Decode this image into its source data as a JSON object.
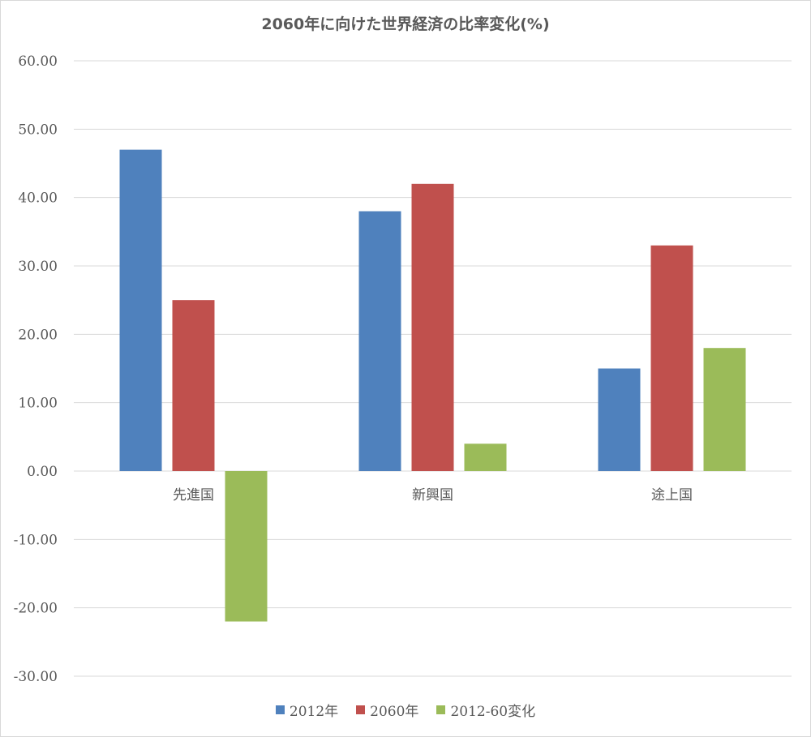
{
  "chart_data": {
    "type": "bar",
    "title": "2060年に向けた世界経済の比率変化(%)",
    "categories": [
      "先進国",
      "新興国",
      "途上国"
    ],
    "series": [
      {
        "name": "2012年",
        "values": [
          47,
          38,
          15
        ],
        "color": "#4f81bd"
      },
      {
        "name": "2060年",
        "values": [
          25,
          42,
          33
        ],
        "color": "#c0504d"
      },
      {
        "name": "2012-60変化",
        "values": [
          -22,
          4,
          18
        ],
        "color": "#9bbb59"
      }
    ],
    "ylim": [
      -30,
      60
    ],
    "yticks": [
      "60.00",
      "50.00",
      "40.00",
      "30.00",
      "20.00",
      "10.00",
      "0.00",
      "-10.00",
      "-20.00",
      "-30.00"
    ],
    "grid": true,
    "legend_position": "bottom",
    "gridline_color": "#d9d9d9"
  }
}
